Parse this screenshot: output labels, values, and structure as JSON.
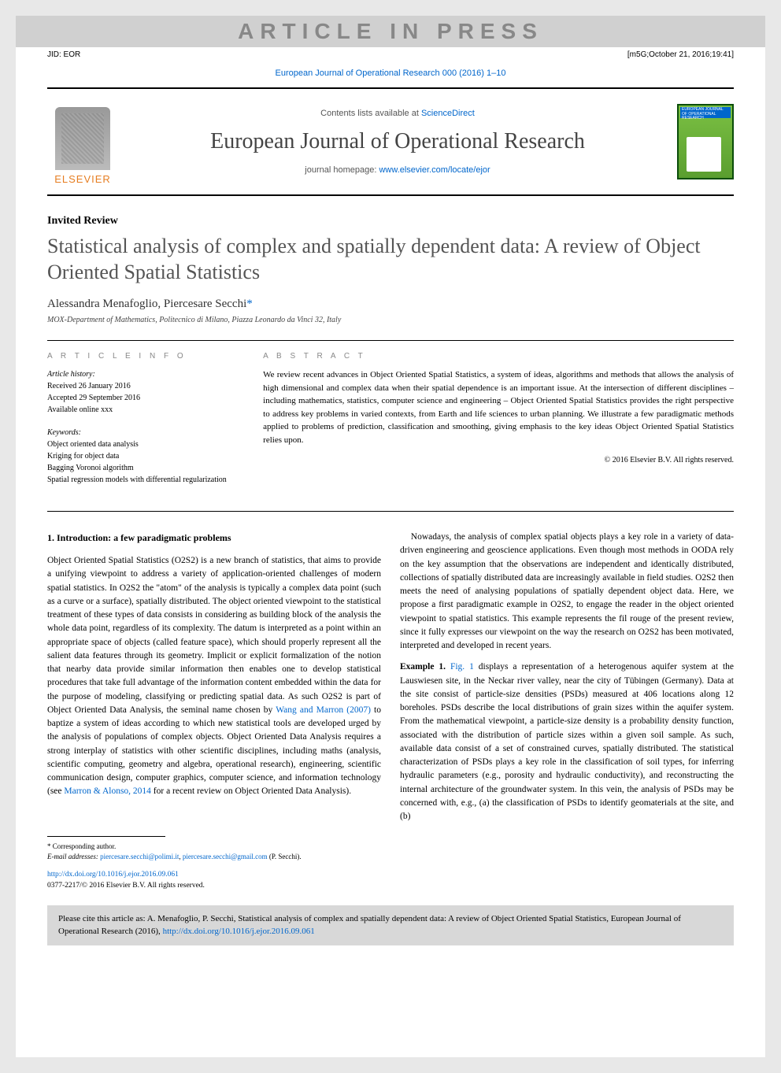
{
  "watermark": "ARTICLE IN PRESS",
  "top_meta": {
    "left": "JID: EOR",
    "right": "[m5G;October 21, 2016;19:41]"
  },
  "journal_ref": "European Journal of Operational Research 000 (2016) 1–10",
  "header": {
    "publisher": "ELSEVIER",
    "contents_prefix": "Contents lists available at ",
    "contents_link": "ScienceDirect",
    "journal_name": "European Journal of Operational Research",
    "homepage_prefix": "journal homepage: ",
    "homepage_link": "www.elsevier.com/locate/ejor",
    "cover_text": "EUROPEAN JOURNAL OF OPERATIONAL RESEARCH"
  },
  "article_type": "Invited Review",
  "title": "Statistical analysis of complex and spatially dependent data: A review of Object Oriented Spatial Statistics",
  "authors": "Alessandra Menafoglio, Piercesare Secchi",
  "corresponding_mark": "*",
  "affiliation": "MOX-Department of Mathematics, Politecnico di Milano, Piazza Leonardo da Vinci 32, Italy",
  "info": {
    "heading": "A R T I C L E  I N F O",
    "history_label": "Article history:",
    "received": "Received 26 January 2016",
    "accepted": "Accepted 29 September 2016",
    "online": "Available online xxx",
    "keywords_label": "Keywords:",
    "keywords": [
      "Object oriented data analysis",
      "Kriging for object data",
      "Bagging Voronoi algorithm",
      "Spatial regression models with differential regularization"
    ]
  },
  "abstract": {
    "heading": "A B S T R A C T",
    "text": "We review recent advances in Object Oriented Spatial Statistics, a system of ideas, algorithms and methods that allows the analysis of high dimensional and complex data when their spatial dependence is an important issue. At the intersection of different disciplines – including mathematics, statistics, computer science and engineering – Object Oriented Spatial Statistics provides the right perspective to address key problems in varied contexts, from Earth and life sciences to urban planning. We illustrate a few paradigmatic methods applied to problems of prediction, classification and smoothing, giving emphasis to the key ideas Object Oriented Spatial Statistics relies upon.",
    "copyright": "© 2016 Elsevier B.V. All rights reserved."
  },
  "body": {
    "section1_heading": "1. Introduction: a few paradigmatic problems",
    "para1": "Object Oriented Spatial Statistics (O2S2) is a new branch of statistics, that aims to provide a unifying viewpoint to address a variety of application-oriented challenges of modern spatial statistics. In O2S2 the \"atom\" of the analysis is typically a complex data point (such as a curve or a surface), spatially distributed. The object oriented viewpoint to the statistical treatment of these types of data consists in considering as building block of the analysis the whole data point, regardless of its complexity. The datum is interpreted as a point within an appropriate space of objects (called feature space), which should properly represent all the salient data features through its geometry. Implicit or explicit formalization of the notion that nearby data provide similar information then enables one to develop statistical procedures that take full advantage of the information content embedded within the data for the purpose of modeling, classifying or predicting spatial data. As such O2S2 is part of Object Oriented Data Analysis, the seminal name chosen by ",
    "para1_ref": "Wang and Marron (2007)",
    "para1_cont": " to baptize a system of ideas according to which new statistical tools are developed urged by the analysis of populations of complex objects. Object Oriented Data Analysis requires a strong interplay of statistics with other scientific disciplines, including maths (analysis, scientific computing, geometry and algebra, operational research), engineering, scientific communication design, computer graphics, computer science, and information technology (see ",
    "para1_ref2": "Marron & Alonso, 2014",
    "para1_cont2": " for a recent review on Object Oriented Data Analysis).",
    "para2": "Nowadays, the analysis of complex spatial objects plays a key role in a variety of data-driven engineering and geoscience applications. Even though most methods in OODA rely on the key assumption that the observations are independent and identically distributed, collections of spatially distributed data are increasingly available in field studies. O2S2 then meets the need of analysing populations of spatially dependent object data. Here, we propose a first paradigmatic example in O2S2, to engage the reader in the object oriented viewpoint to spatial statistics. This example represents the fil rouge of the present review, since it fully expresses our viewpoint on the way the research on O2S2 has been motivated, interpreted and developed in recent years.",
    "example_label": "Example 1.",
    "example_ref": "Fig. 1",
    "example_text": " displays a representation of a heterogenous aquifer system at the Lauswiesen site, in the Neckar river valley, near the city of Tübingen (Germany). Data at the site consist of particle-size densities (PSDs) measured at 406 locations along 12 boreholes. PSDs describe the local distributions of grain sizes within the aquifer system. From the mathematical viewpoint, a particle-size density is a probability density function, associated with the distribution of particle sizes within a given soil sample. As such, available data consist of a set of constrained curves, spatially distributed. The statistical characterization of PSDs plays a key role in the classification of soil types, for inferring hydraulic parameters (e.g., porosity and hydraulic conductivity), and reconstructing the internal architecture of the groundwater system. In this vein, the analysis of PSDs may be concerned with, e.g., (a) the classification of PSDs to identify geomaterials at the site, and (b)"
  },
  "footnotes": {
    "corresponding": "* Corresponding author.",
    "email_label": "E-mail addresses:",
    "email1": "piercesare.secchi@polimi.it",
    "email2": "piercesare.secchi@gmail.com",
    "email_suffix": "(P. Secchi)."
  },
  "doi_link": "http://dx.doi.org/10.1016/j.ejor.2016.09.061",
  "issn": "0377-2217/© 2016 Elsevier B.V. All rights reserved.",
  "cite_box": {
    "prefix": "Please cite this article as: A. Menafoglio, P. Secchi, Statistical analysis of complex and spatially dependent data: A review of Object Oriented Spatial Statistics, European Journal of Operational Research (2016), ",
    "link": "http://dx.doi.org/10.1016/j.ejor.2016.09.061"
  },
  "colors": {
    "link": "#0066cc",
    "publisher": "#e67e22",
    "watermark_bg": "#d0d0d0",
    "watermark_fg": "#888888",
    "citebox_bg": "#d8d8d8"
  }
}
